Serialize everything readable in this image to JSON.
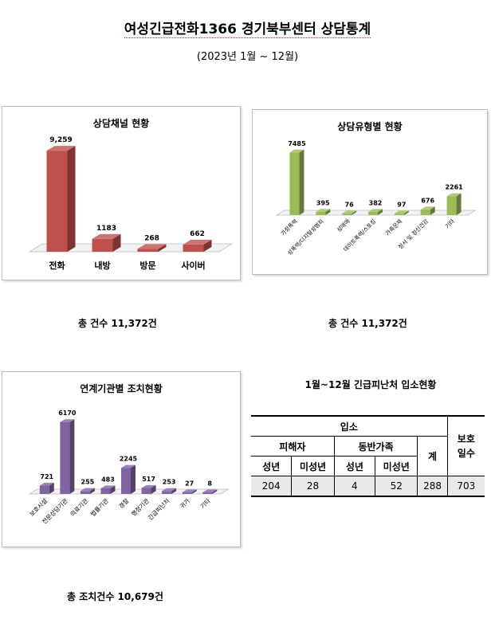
{
  "page": {
    "title": "여성긴급전화1366 경기북부센터  상담통계",
    "subtitle": "(2023년  1월  ~  12월)"
  },
  "chart_data": [
    {
      "type": "bar",
      "title": "상담채널 현황",
      "categories": [
        "전화",
        "내방",
        "방문",
        "사이버"
      ],
      "values": [
        9259,
        1183,
        268,
        662
      ],
      "value_labels": [
        "9,259",
        "1183",
        "268",
        "662"
      ],
      "ylim": [
        0,
        10000
      ],
      "color": "#c0504d",
      "grid": false
    },
    {
      "type": "bar",
      "title": "상담유형별 현황",
      "categories": [
        "가정폭력",
        "성폭력/디지털성범죄",
        "성매매",
        "데이트폭력/스토킹",
        "가족문제",
        "정서 및 정신건강",
        "기타"
      ],
      "values": [
        7485,
        395,
        76,
        382,
        97,
        676,
        2261
      ],
      "value_labels": [
        "7485",
        "395",
        "76",
        "382",
        "97",
        "676",
        "2261"
      ],
      "ylim": [
        0,
        8000
      ],
      "color": "#9bbb59",
      "grid": false
    },
    {
      "type": "bar",
      "title": "연계기관별 조치현황",
      "categories": [
        "보호시설",
        "전문상담기관",
        "의료기관",
        "법률기관",
        "경찰",
        "행정기관",
        "긴급피난처",
        "귀가",
        "기타"
      ],
      "values": [
        721,
        6170,
        255,
        483,
        2245,
        517,
        253,
        27,
        8
      ],
      "value_labels": [
        "721",
        "6170",
        "255",
        "483",
        "2245",
        "517",
        "253",
        "27",
        "8"
      ],
      "ylim": [
        0,
        6500
      ],
      "color": "#8064a2",
      "grid": false
    }
  ],
  "totals": {
    "channel": "총  건수  11,372건",
    "type": "총  건수  11,372건",
    "action": "총  조치건수  10,679건"
  },
  "shelter_table": {
    "title": "1월~12월  긴급피난처  입소현황",
    "h_admission": "입소",
    "h_days": "보호일수",
    "h_victim": "피해자",
    "h_family": "동반가족",
    "h_sum": "계",
    "h_adult1": "성년",
    "h_minor1": "미성년",
    "h_adult2": "성년",
    "h_minor2": "미성년",
    "v_victim_adult": "204",
    "v_victim_minor": "28",
    "v_family_adult": "4",
    "v_family_minor": "52",
    "v_sum": "288",
    "v_days": "703"
  }
}
